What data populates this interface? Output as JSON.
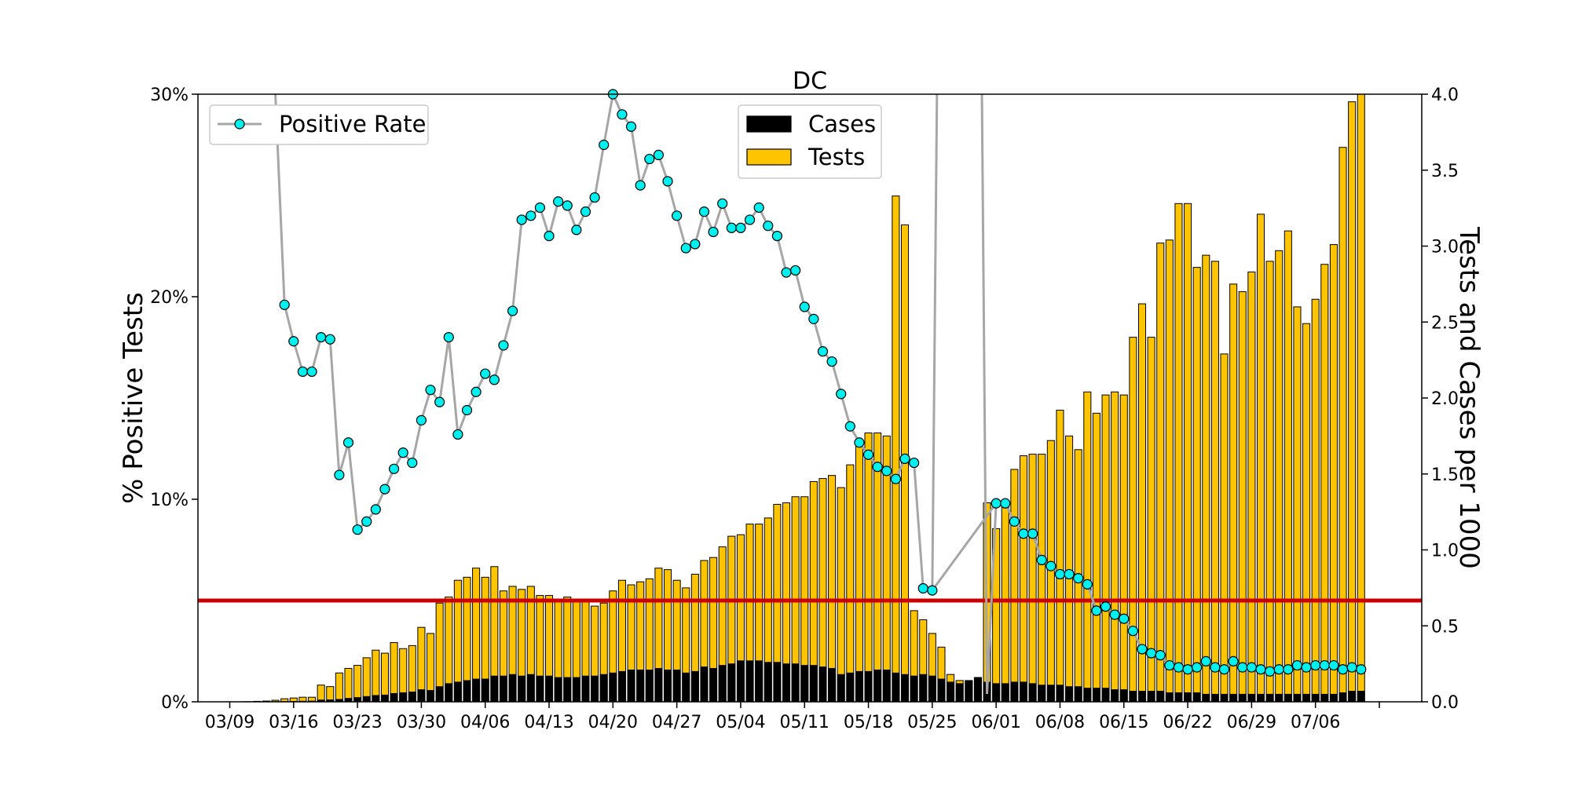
{
  "chart_data": {
    "type": "bar",
    "title": "DC",
    "ylabel": "% Positive Tests",
    "y2label": "Tests and Cases per 1000",
    "ylim": [
      0,
      30
    ],
    "y2lim": [
      0,
      4
    ],
    "yticks": [
      "0%",
      "10%",
      "20%",
      "30%"
    ],
    "y2ticks": [
      "0.0",
      "0.5",
      "1.0",
      "1.5",
      "2.0",
      "2.5",
      "3.0",
      "3.5",
      "4.0"
    ],
    "xtick_labels": [
      "03/09",
      "03/16",
      "03/23",
      "03/30",
      "04/06",
      "04/13",
      "04/20",
      "04/27",
      "05/04",
      "05/11",
      "05/18",
      "05/25",
      "06/01",
      "06/08",
      "06/15",
      "06/22",
      "06/29",
      "07/06"
    ],
    "x_start": "03/09",
    "threshold_line": 5,
    "colors": {
      "tests": "#ffc400",
      "cases": "#000000",
      "positive_rate_line": "#a6a6a6",
      "positive_rate_marker": "#00f0f0",
      "threshold": "#cc0000"
    },
    "legend_left": {
      "label": "Positive Rate"
    },
    "legend_right": {
      "cases_label": "Cases",
      "tests_label": "Tests"
    },
    "series": [
      {
        "name": "Tests",
        "axis": "right",
        "values": [
          0,
          0,
          0.001,
          0.003,
          0.005,
          0.01,
          0.02,
          0.025,
          0.03,
          0.03,
          0.11,
          0.1,
          0.19,
          0.22,
          0.24,
          0.29,
          0.34,
          0.32,
          0.39,
          0.35,
          0.37,
          0.49,
          0.45,
          0.65,
          0.69,
          0.8,
          0.82,
          0.88,
          0.82,
          0.89,
          0.73,
          0.76,
          0.74,
          0.76,
          0.7,
          0.7,
          0.67,
          0.69,
          0.67,
          0.66,
          0.63,
          0.65,
          0.73,
          0.8,
          0.77,
          0.79,
          0.81,
          0.88,
          0.87,
          0.8,
          0.75,
          0.84,
          0.93,
          0.95,
          1.02,
          1.09,
          1.1,
          1.17,
          1.17,
          1.21,
          1.3,
          1.31,
          1.35,
          1.35,
          1.45,
          1.47,
          1.49,
          1.41,
          1.56,
          1.68,
          1.77,
          1.77,
          1.75,
          3.33,
          3.14,
          0.6,
          0.54,
          0.45,
          0.36,
          0.18,
          0.14,
          0.14,
          0.16,
          1.31,
          1.14,
          1.31,
          1.53,
          1.62,
          1.63,
          1.63,
          1.72,
          1.92,
          1.75,
          1.66,
          2.04,
          1.9,
          2.02,
          2.04,
          2.02,
          2.4,
          2.62,
          2.4,
          3.02,
          3.04,
          3.28,
          3.28,
          2.86,
          2.94,
          2.9,
          2.29,
          2.75,
          2.7,
          2.83,
          3.21,
          2.9,
          2.97,
          3.1,
          2.6,
          2.49,
          2.65,
          2.88,
          3.01,
          3.65,
          3.95,
          4.0
        ]
      },
      {
        "name": "Cases",
        "axis": "right",
        "values": [
          0,
          0,
          0,
          0,
          0,
          0.001,
          0.002,
          0.003,
          0.004,
          0.005,
          0.012,
          0.013,
          0.016,
          0.023,
          0.028,
          0.035,
          0.042,
          0.045,
          0.055,
          0.06,
          0.065,
          0.08,
          0.075,
          0.1,
          0.12,
          0.13,
          0.14,
          0.15,
          0.15,
          0.17,
          0.17,
          0.18,
          0.17,
          0.18,
          0.17,
          0.17,
          0.16,
          0.16,
          0.16,
          0.17,
          0.17,
          0.18,
          0.19,
          0.2,
          0.21,
          0.21,
          0.21,
          0.22,
          0.21,
          0.21,
          0.19,
          0.2,
          0.23,
          0.22,
          0.24,
          0.25,
          0.27,
          0.27,
          0.27,
          0.26,
          0.26,
          0.25,
          0.25,
          0.24,
          0.24,
          0.23,
          0.22,
          0.18,
          0.19,
          0.2,
          0.2,
          0.21,
          0.21,
          0.19,
          0.18,
          0.17,
          0.18,
          0.17,
          0.15,
          0.13,
          0.12,
          0.14,
          0.16,
          0.13,
          0.12,
          0.12,
          0.13,
          0.13,
          0.12,
          0.11,
          0.11,
          0.11,
          0.1,
          0.1,
          0.09,
          0.09,
          0.09,
          0.08,
          0.08,
          0.07,
          0.07,
          0.07,
          0.07,
          0.06,
          0.06,
          0.06,
          0.06,
          0.05,
          0.05,
          0.05,
          0.05,
          0.05,
          0.05,
          0.05,
          0.05,
          0.05,
          0.05,
          0.05,
          0.05,
          0.05,
          0.05,
          0.05,
          0.06,
          0.07,
          0.07
        ]
      },
      {
        "name": "Positive Rate",
        "axis": "left",
        "values": [
          null,
          null,
          null,
          null,
          null,
          30,
          19.6,
          17.8,
          16.3,
          16.3,
          18,
          17.9,
          11.2,
          12.8,
          8.5,
          8.9,
          9.5,
          10.5,
          11.5,
          12.3,
          11.8,
          13.9,
          15.4,
          14.8,
          18,
          13.2,
          14.4,
          15.3,
          16.2,
          15.9,
          17.6,
          19.3,
          23.8,
          24,
          24.4,
          23,
          24.7,
          24.5,
          23.3,
          24.2,
          24.9,
          27.5,
          30,
          29,
          28.4,
          25.5,
          26.8,
          27,
          25.7,
          24,
          22.4,
          22.6,
          24.2,
          23.2,
          24.6,
          23.4,
          23.4,
          23.8,
          24.4,
          23.5,
          23,
          21.2,
          21.3,
          19.5,
          18.9,
          17.3,
          16.8,
          15.2,
          13.6,
          12.8,
          12.2,
          11.6,
          11.4,
          11,
          12,
          11.8,
          5.6,
          5.5,
          null,
          null,
          null,
          null,
          null,
          null,
          9.8,
          9.8,
          8.9,
          8.3,
          8.3,
          7,
          6.7,
          6.3,
          6.3,
          6.1,
          5.8,
          4.5,
          4.7,
          4.3,
          4.1,
          3.5,
          2.6,
          2.4,
          2.3,
          1.8,
          1.7,
          1.6,
          1.7,
          2,
          1.7,
          1.6,
          2,
          1.7,
          1.7,
          1.6,
          1.5,
          1.6,
          1.6,
          1.8,
          1.7,
          1.8,
          1.8,
          1.8,
          1.6,
          1.7,
          1.6
        ]
      }
    ]
  }
}
